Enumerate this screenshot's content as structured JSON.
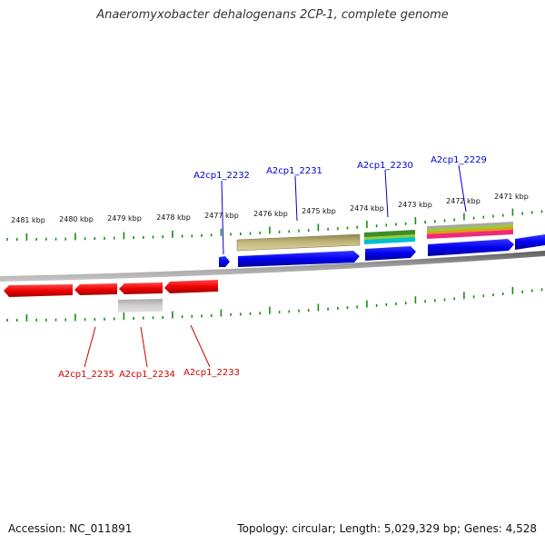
{
  "title": "Anaeromyxobacter dehalogenans 2CP-1, complete genome",
  "footer": {
    "accession": "Accession: NC_011891",
    "summary": "Topology: circular; Length: 5,029,329 bp; Genes: 4,528"
  },
  "colors": {
    "forward_gene": "#0000ee",
    "reverse_gene": "#ee0000",
    "tick": "#1a8a1a",
    "backbone": "#888888",
    "feature_olive": "#b5aa6a",
    "feature_gray": "#c0c0c0"
  },
  "ticks": [
    {
      "label": "2481 kbp"
    },
    {
      "label": "2480 kbp"
    },
    {
      "label": "2479 kbp"
    },
    {
      "label": "2478 kbp"
    },
    {
      "label": "2477 kbp"
    },
    {
      "label": "2476 kbp"
    },
    {
      "label": "2475 kbp"
    },
    {
      "label": "2474 kbp"
    },
    {
      "label": "2473 kbp"
    },
    {
      "label": "2472 kbp"
    },
    {
      "label": "2471 kbp"
    }
  ],
  "genes_top": [
    {
      "name": "A2cp1_2232"
    },
    {
      "name": "A2cp1_2231"
    },
    {
      "name": "A2cp1_2230"
    },
    {
      "name": "A2cp1_2229"
    }
  ],
  "genes_bottom": [
    {
      "name": "A2cp1_2235"
    },
    {
      "name": "A2cp1_2234"
    },
    {
      "name": "A2cp1_2233"
    }
  ]
}
